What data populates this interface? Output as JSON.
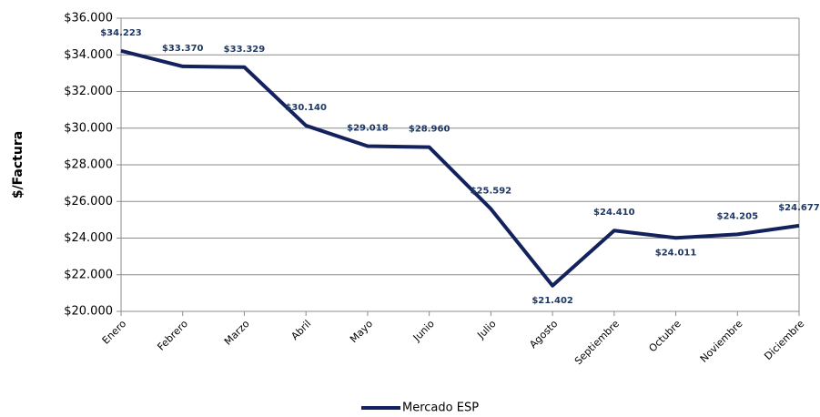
{
  "chart_data": {
    "type": "line",
    "y_label": "$/Factura",
    "categories": [
      "Enero",
      "Febrero",
      "Marzo",
      "Abril",
      "Mayo",
      "Junio",
      "Julio",
      "Agosto",
      "Septiembre",
      "Octubre",
      "Noviembre",
      "Diciembre"
    ],
    "series": [
      {
        "name": "Mercado ESP",
        "color": "#13225c",
        "values": [
          34223,
          33370,
          33329,
          30140,
          29018,
          28960,
          25592,
          21402,
          24410,
          24011,
          24205,
          24677
        ],
        "value_labels": [
          "$34.223",
          "$33.370",
          "$33.329",
          "$30.140",
          "$29.018",
          "$28.960",
          "$25.592",
          "$21.402",
          "$24.410",
          "$24.011",
          "$24.205",
          "$24.677"
        ]
      }
    ],
    "ylim": [
      20000,
      36000
    ],
    "yticks": [
      {
        "value": 20000,
        "label": "$20.000"
      },
      {
        "value": 22000,
        "label": "$22.000"
      },
      {
        "value": 24000,
        "label": "$24.000"
      },
      {
        "value": 26000,
        "label": "$26.000"
      },
      {
        "value": 28000,
        "label": "$28.000"
      },
      {
        "value": 30000,
        "label": "$30.000"
      },
      {
        "value": 32000,
        "label": "$32.000"
      },
      {
        "value": 34000,
        "label": "$34.000"
      },
      {
        "value": 36000,
        "label": "$36.000"
      }
    ],
    "grid": true
  }
}
